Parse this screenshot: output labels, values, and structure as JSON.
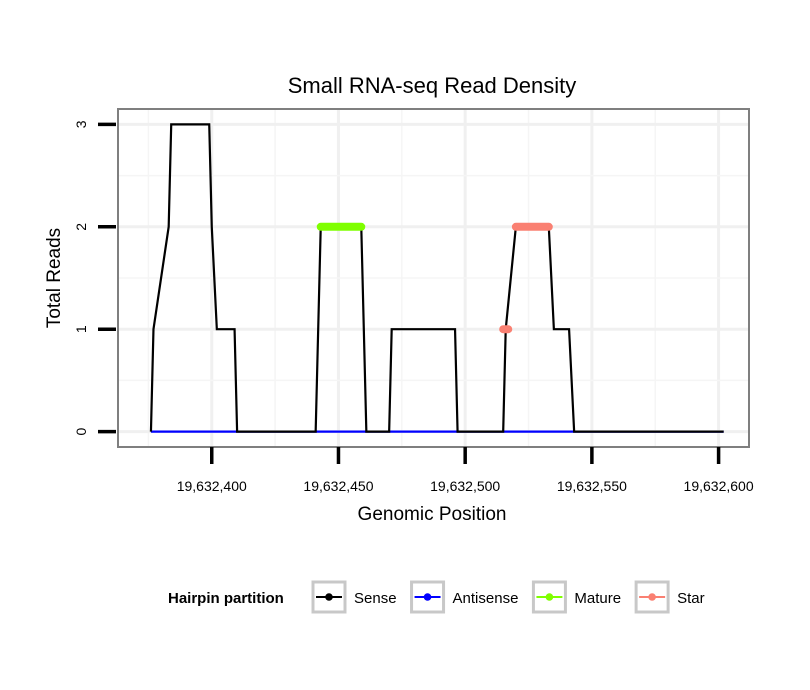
{
  "chart_data": {
    "type": "line",
    "title": "Small RNA-seq Read Density",
    "xlabel": "Genomic Position",
    "ylabel": "Total Reads",
    "xlim": [
      19632363,
      19632612
    ],
    "ylim": [
      -0.15,
      3.15
    ],
    "x_ticks": [
      {
        "value": 19632400,
        "label": "19,632,400"
      },
      {
        "value": 19632450,
        "label": "19,632,450"
      },
      {
        "value": 19632500,
        "label": "19,632,500"
      },
      {
        "value": 19632550,
        "label": "19,632,550"
      },
      {
        "value": 19632600,
        "label": "19,632,600"
      }
    ],
    "y_ticks": [
      {
        "value": 0,
        "label": "0"
      },
      {
        "value": 1,
        "label": "1"
      },
      {
        "value": 2,
        "label": "2"
      },
      {
        "value": 3,
        "label": "3"
      }
    ],
    "grid": true,
    "legend": {
      "title": "Hairpin partition",
      "position": "bottom",
      "entries": [
        {
          "name": "Sense",
          "color": "#000000"
        },
        {
          "name": "Antisense",
          "color": "#0000ff"
        },
        {
          "name": "Mature",
          "color": "#7fff00"
        },
        {
          "name": "Star",
          "color": "#fa8072"
        }
      ]
    },
    "series": [
      {
        "name": "Sense",
        "color": "#000000",
        "style": "line",
        "points": [
          [
            19632376,
            0
          ],
          [
            19632377,
            1
          ],
          [
            19632383,
            2
          ],
          [
            19632384,
            3
          ],
          [
            19632399,
            3
          ],
          [
            19632400,
            2
          ],
          [
            19632402,
            1
          ],
          [
            19632409,
            1
          ],
          [
            19632410,
            0
          ],
          [
            19632441,
            0
          ],
          [
            19632443,
            2
          ],
          [
            19632459,
            2
          ],
          [
            19632461,
            0
          ],
          [
            19632470,
            0
          ],
          [
            19632471,
            1
          ],
          [
            19632496,
            1
          ],
          [
            19632497,
            0
          ],
          [
            19632515,
            0
          ],
          [
            19632516,
            1
          ],
          [
            19632520,
            2
          ],
          [
            19632533,
            2
          ],
          [
            19632535,
            1
          ],
          [
            19632541,
            1
          ],
          [
            19632543,
            0
          ],
          [
            19632602,
            0
          ]
        ]
      },
      {
        "name": "Antisense",
        "color": "#0000ff",
        "style": "line",
        "points": [
          [
            19632376,
            0
          ],
          [
            19632602,
            0
          ]
        ]
      },
      {
        "name": "Mature",
        "color": "#7fff00",
        "style": "segment",
        "points": [
          [
            19632443,
            2
          ],
          [
            19632459,
            2
          ]
        ]
      },
      {
        "name": "Star",
        "color": "#fa8072",
        "style": "segment",
        "points": [
          [
            19632520,
            2
          ],
          [
            19632533,
            2
          ]
        ]
      },
      {
        "name": "Star",
        "color": "#fa8072",
        "style": "segment",
        "points": [
          [
            19632515,
            1
          ],
          [
            19632517,
            1
          ]
        ]
      }
    ]
  }
}
